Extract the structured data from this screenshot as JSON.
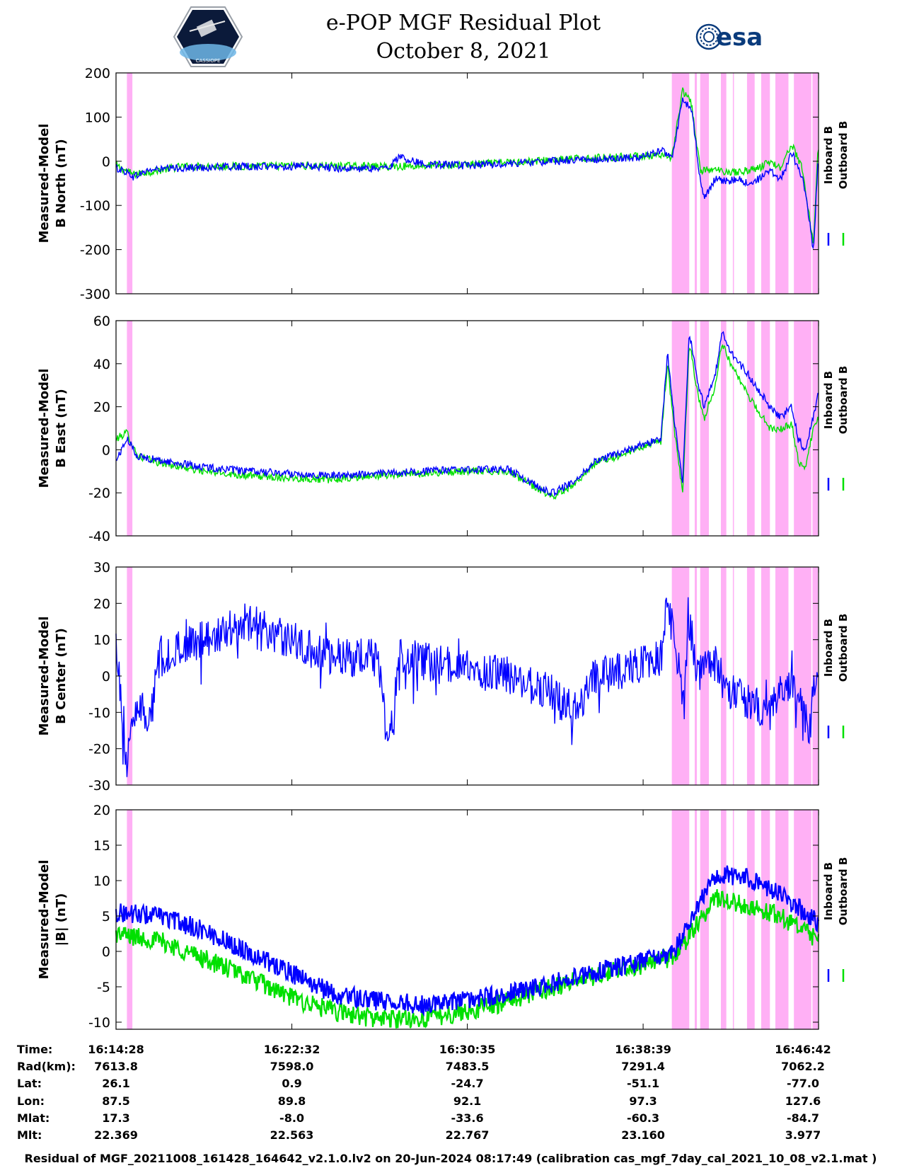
{
  "header": {
    "title_line1": "e-POP MGF Residual Plot",
    "title_line2": "October 8, 2021",
    "left_logo_text": "CASSIOPE",
    "right_logo_text": "esa"
  },
  "legend": {
    "inboard_label": "Inboard B",
    "outboard_label": "Outboard B",
    "inboard_color": "#0000ff",
    "outboard_color": "#00e000"
  },
  "colors": {
    "shading": "#ffb0f5",
    "inboard": "#0000ff",
    "outboard": "#00e000"
  },
  "chart_data": [
    {
      "type": "line",
      "ylabel_line1": "Measured-Model",
      "ylabel_line2": "B North (nT)",
      "ylim": [
        -300,
        200
      ],
      "yticks": [
        200,
        100,
        0,
        -100,
        -200,
        -300
      ],
      "x_range_minutes": [
        0,
        32.23
      ],
      "shaded_intervals_minutes": [
        [
          0.5,
          0.75
        ],
        [
          25.5,
          26.3
        ],
        [
          26.55,
          26.65
        ],
        [
          26.8,
          27.2
        ],
        [
          27.75,
          28.0
        ],
        [
          28.3,
          28.35
        ],
        [
          28.95,
          29.3
        ],
        [
          29.6,
          30.0
        ],
        [
          30.25,
          30.85
        ],
        [
          31.1,
          31.9
        ],
        [
          31.95,
          32.2
        ]
      ],
      "series": [
        {
          "name": "Inboard B",
          "points": [
            [
              0,
              -15
            ],
            [
              0.5,
              -25
            ],
            [
              0.8,
              -35
            ],
            [
              1.5,
              -20
            ],
            [
              3,
              -15
            ],
            [
              6,
              -12
            ],
            [
              9,
              -12
            ],
            [
              11,
              -18
            ],
            [
              12.5,
              -15
            ],
            [
              13,
              10
            ],
            [
              14,
              -5
            ],
            [
              16,
              -10
            ],
            [
              18,
              -5
            ],
            [
              20,
              0
            ],
            [
              22,
              5
            ],
            [
              24,
              8
            ],
            [
              25,
              25
            ],
            [
              25.5,
              5
            ],
            [
              26,
              140
            ],
            [
              26.4,
              120
            ],
            [
              26.8,
              -40
            ],
            [
              27,
              -80
            ],
            [
              27.5,
              -40
            ],
            [
              28,
              -45
            ],
            [
              28.5,
              -40
            ],
            [
              29,
              -50
            ],
            [
              29.5,
              -40
            ],
            [
              30,
              -20
            ],
            [
              30.5,
              -40
            ],
            [
              31,
              20
            ],
            [
              31.5,
              -40
            ],
            [
              31.8,
              -130
            ],
            [
              32,
              -210
            ],
            [
              32.2,
              0
            ]
          ]
        },
        {
          "name": "Outboard B",
          "points": [
            [
              0,
              -10
            ],
            [
              0.8,
              -30
            ],
            [
              3,
              -12
            ],
            [
              9,
              -10
            ],
            [
              12.5,
              -12
            ],
            [
              16,
              -8
            ],
            [
              20,
              3
            ],
            [
              24,
              12
            ],
            [
              25.5,
              10
            ],
            [
              26,
              160
            ],
            [
              26.4,
              130
            ],
            [
              26.8,
              -20
            ],
            [
              27.5,
              -20
            ],
            [
              28.5,
              -25
            ],
            [
              29.5,
              -15
            ],
            [
              30,
              0
            ],
            [
              30.5,
              -15
            ],
            [
              31,
              40
            ],
            [
              31.5,
              -20
            ],
            [
              32,
              -190
            ],
            [
              32.2,
              30
            ]
          ]
        }
      ]
    },
    {
      "type": "line",
      "ylabel_line1": "Measured-Model",
      "ylabel_line2": "B East (nT)",
      "ylim": [
        -40,
        60
      ],
      "yticks": [
        60,
        40,
        20,
        0,
        -20,
        -40
      ],
      "x_range_minutes": [
        0,
        32.23
      ],
      "shaded_intervals_minutes": [
        [
          0.5,
          0.75
        ],
        [
          25.5,
          26.3
        ],
        [
          26.55,
          26.65
        ],
        [
          26.8,
          27.2
        ],
        [
          27.75,
          28.0
        ],
        [
          28.3,
          28.35
        ],
        [
          28.95,
          29.3
        ],
        [
          29.6,
          30.0
        ],
        [
          30.25,
          30.85
        ],
        [
          31.1,
          31.9
        ],
        [
          31.95,
          32.2
        ]
      ],
      "series": [
        {
          "name": "Inboard B",
          "points": [
            [
              0,
              -5
            ],
            [
              0.5,
              5
            ],
            [
              1,
              -3
            ],
            [
              2,
              -5
            ],
            [
              4,
              -8
            ],
            [
              6,
              -10
            ],
            [
              8,
              -11
            ],
            [
              10,
              -12
            ],
            [
              12,
              -11
            ],
            [
              14,
              -10
            ],
            [
              16,
              -9
            ],
            [
              18,
              -9
            ],
            [
              19,
              -15
            ],
            [
              20,
              -20
            ],
            [
              21,
              -15
            ],
            [
              22,
              -5
            ],
            [
              23,
              -2
            ],
            [
              24,
              2
            ],
            [
              25,
              5
            ],
            [
              25.3,
              45
            ],
            [
              25.6,
              15
            ],
            [
              26,
              -15
            ],
            [
              26.3,
              55
            ],
            [
              26.7,
              30
            ],
            [
              27,
              20
            ],
            [
              27.5,
              35
            ],
            [
              27.8,
              55
            ],
            [
              28.2,
              45
            ],
            [
              29,
              35
            ],
            [
              30,
              20
            ],
            [
              30.5,
              15
            ],
            [
              31,
              20
            ],
            [
              31.3,
              5
            ],
            [
              31.6,
              0
            ],
            [
              32,
              15
            ],
            [
              32.2,
              25
            ]
          ]
        },
        {
          "name": "Outboard B",
          "points": [
            [
              0,
              5
            ],
            [
              0.5,
              8
            ],
            [
              1,
              -3
            ],
            [
              2,
              -6
            ],
            [
              4,
              -10
            ],
            [
              6,
              -12
            ],
            [
              8,
              -13
            ],
            [
              10,
              -14
            ],
            [
              12,
              -12
            ],
            [
              14,
              -11
            ],
            [
              16,
              -10
            ],
            [
              18,
              -10
            ],
            [
              19,
              -16
            ],
            [
              20,
              -22
            ],
            [
              21,
              -16
            ],
            [
              22,
              -6
            ],
            [
              23,
              -3
            ],
            [
              24,
              1
            ],
            [
              25,
              4
            ],
            [
              25.3,
              40
            ],
            [
              25.6,
              10
            ],
            [
              26,
              -20
            ],
            [
              26.3,
              50
            ],
            [
              26.7,
              25
            ],
            [
              27,
              15
            ],
            [
              27.5,
              30
            ],
            [
              27.8,
              50
            ],
            [
              28.2,
              40
            ],
            [
              29,
              25
            ],
            [
              30,
              10
            ],
            [
              30.5,
              10
            ],
            [
              31,
              12
            ],
            [
              31.3,
              -5
            ],
            [
              31.6,
              -10
            ],
            [
              32,
              10
            ],
            [
              32.2,
              15
            ]
          ]
        }
      ]
    },
    {
      "type": "line",
      "ylabel_line1": "Measured-Model",
      "ylabel_line2": "B Center (nT)",
      "ylim": [
        -30,
        30
      ],
      "yticks": [
        30,
        20,
        10,
        0,
        -10,
        -20,
        -30
      ],
      "x_range_minutes": [
        0,
        32.23
      ],
      "shaded_intervals_minutes": [
        [
          0.5,
          0.75
        ],
        [
          25.5,
          26.3
        ],
        [
          26.55,
          26.65
        ],
        [
          26.8,
          27.2
        ],
        [
          27.75,
          28.0
        ],
        [
          28.3,
          28.35
        ],
        [
          28.95,
          29.3
        ],
        [
          29.6,
          30.0
        ],
        [
          30.25,
          30.85
        ],
        [
          31.1,
          31.9
        ],
        [
          31.95,
          32.2
        ]
      ],
      "series": [
        {
          "name": "Inboard B",
          "points": [
            [
              0,
              10
            ],
            [
              0.5,
              -25
            ],
            [
              1,
              -5
            ],
            [
              1.5,
              -15
            ],
            [
              2,
              5
            ],
            [
              4,
              10
            ],
            [
              6,
              15
            ],
            [
              8,
              10
            ],
            [
              10,
              5
            ],
            [
              12,
              5
            ],
            [
              12.5,
              -20
            ],
            [
              13,
              5
            ],
            [
              16,
              2
            ],
            [
              18,
              0
            ],
            [
              20,
              -5
            ],
            [
              21,
              -10
            ],
            [
              22,
              0
            ],
            [
              24,
              3
            ],
            [
              25,
              5
            ],
            [
              25.3,
              20
            ],
            [
              25.6,
              10
            ],
            [
              26,
              -5
            ],
            [
              26.3,
              15
            ],
            [
              26.7,
              0
            ],
            [
              27,
              5
            ],
            [
              27.5,
              3
            ],
            [
              28,
              -3
            ],
            [
              29,
              -7
            ],
            [
              30,
              -10
            ],
            [
              30.5,
              -5
            ],
            [
              31,
              -3
            ],
            [
              31.5,
              -8
            ],
            [
              31.8,
              -15
            ],
            [
              32,
              -5
            ],
            [
              32.2,
              2
            ]
          ]
        }
      ]
    },
    {
      "type": "line",
      "ylabel_line1": "Measured-Model",
      "ylabel_line2": "|B| (nT)",
      "ylim": [
        -11,
        20
      ],
      "yticks": [
        20,
        15,
        10,
        5,
        0,
        -5,
        -10
      ],
      "x_range_minutes": [
        0,
        32.23
      ],
      "shaded_intervals_minutes": [
        [
          0.5,
          0.75
        ],
        [
          25.5,
          26.3
        ],
        [
          26.55,
          26.65
        ],
        [
          26.8,
          27.2
        ],
        [
          27.75,
          28.0
        ],
        [
          28.3,
          28.35
        ],
        [
          28.95,
          29.3
        ],
        [
          29.6,
          30.0
        ],
        [
          30.25,
          30.85
        ],
        [
          31.1,
          31.9
        ],
        [
          31.95,
          32.2
        ]
      ],
      "series": [
        {
          "name": "Inboard B",
          "points": [
            [
              0,
              5.5
            ],
            [
              2,
              5
            ],
            [
              4,
              3
            ],
            [
              6,
              0
            ],
            [
              8,
              -3
            ],
            [
              10,
              -6
            ],
            [
              12,
              -7
            ],
            [
              14,
              -7.5
            ],
            [
              16,
              -7
            ],
            [
              18,
              -6
            ],
            [
              20,
              -4.5
            ],
            [
              22,
              -3
            ],
            [
              24,
              -1.5
            ],
            [
              25.5,
              -0.5
            ],
            [
              26.5,
              5
            ],
            [
              27.5,
              11
            ],
            [
              29,
              10.5
            ],
            [
              30.5,
              8
            ],
            [
              32.2,
              4
            ]
          ]
        },
        {
          "name": "Outboard B",
          "points": [
            [
              0,
              2.5
            ],
            [
              2,
              1.5
            ],
            [
              4,
              -1
            ],
            [
              6,
              -3.5
            ],
            [
              8,
              -6.5
            ],
            [
              10,
              -8.5
            ],
            [
              12,
              -9.5
            ],
            [
              14,
              -9.5
            ],
            [
              16,
              -8.5
            ],
            [
              18,
              -7
            ],
            [
              20,
              -5
            ],
            [
              22,
              -3.5
            ],
            [
              24,
              -2
            ],
            [
              25.5,
              -1
            ],
            [
              26.5,
              3
            ],
            [
              27.5,
              7.5
            ],
            [
              29,
              6.5
            ],
            [
              30.5,
              5
            ],
            [
              32.2,
              1.5
            ]
          ]
        }
      ]
    }
  ],
  "ephemeris": {
    "row_labels": [
      "Time:",
      "Rad(km):",
      "Lat:",
      "Lon:",
      "Mlat:",
      "Mlt:"
    ],
    "columns": [
      [
        "16:14:28",
        "7613.8",
        "26.1",
        "87.5",
        "17.3",
        "22.369"
      ],
      [
        "16:22:32",
        "7598.0",
        "0.9",
        "89.8",
        "-8.0",
        "22.563"
      ],
      [
        "16:30:35",
        "7483.5",
        "-24.7",
        "92.1",
        "-33.6",
        "22.767"
      ],
      [
        "16:38:39",
        "7291.4",
        "-51.1",
        "97.3",
        "-60.3",
        "23.160"
      ],
      [
        "16:46:42",
        "7062.2",
        "-77.0",
        "127.6",
        "-84.7",
        "3.977"
      ]
    ],
    "tick_minutes": [
      0,
      8.067,
      16.117,
      24.183,
      32.233
    ]
  },
  "footer": {
    "text": "Residual of MGF_20211008_161428_164642_v2.1.0.lv2 on 20-Jun-2024 08:17:49 (calibration cas_mgf_7day_cal_2021_10_08_v2.1.mat )"
  }
}
